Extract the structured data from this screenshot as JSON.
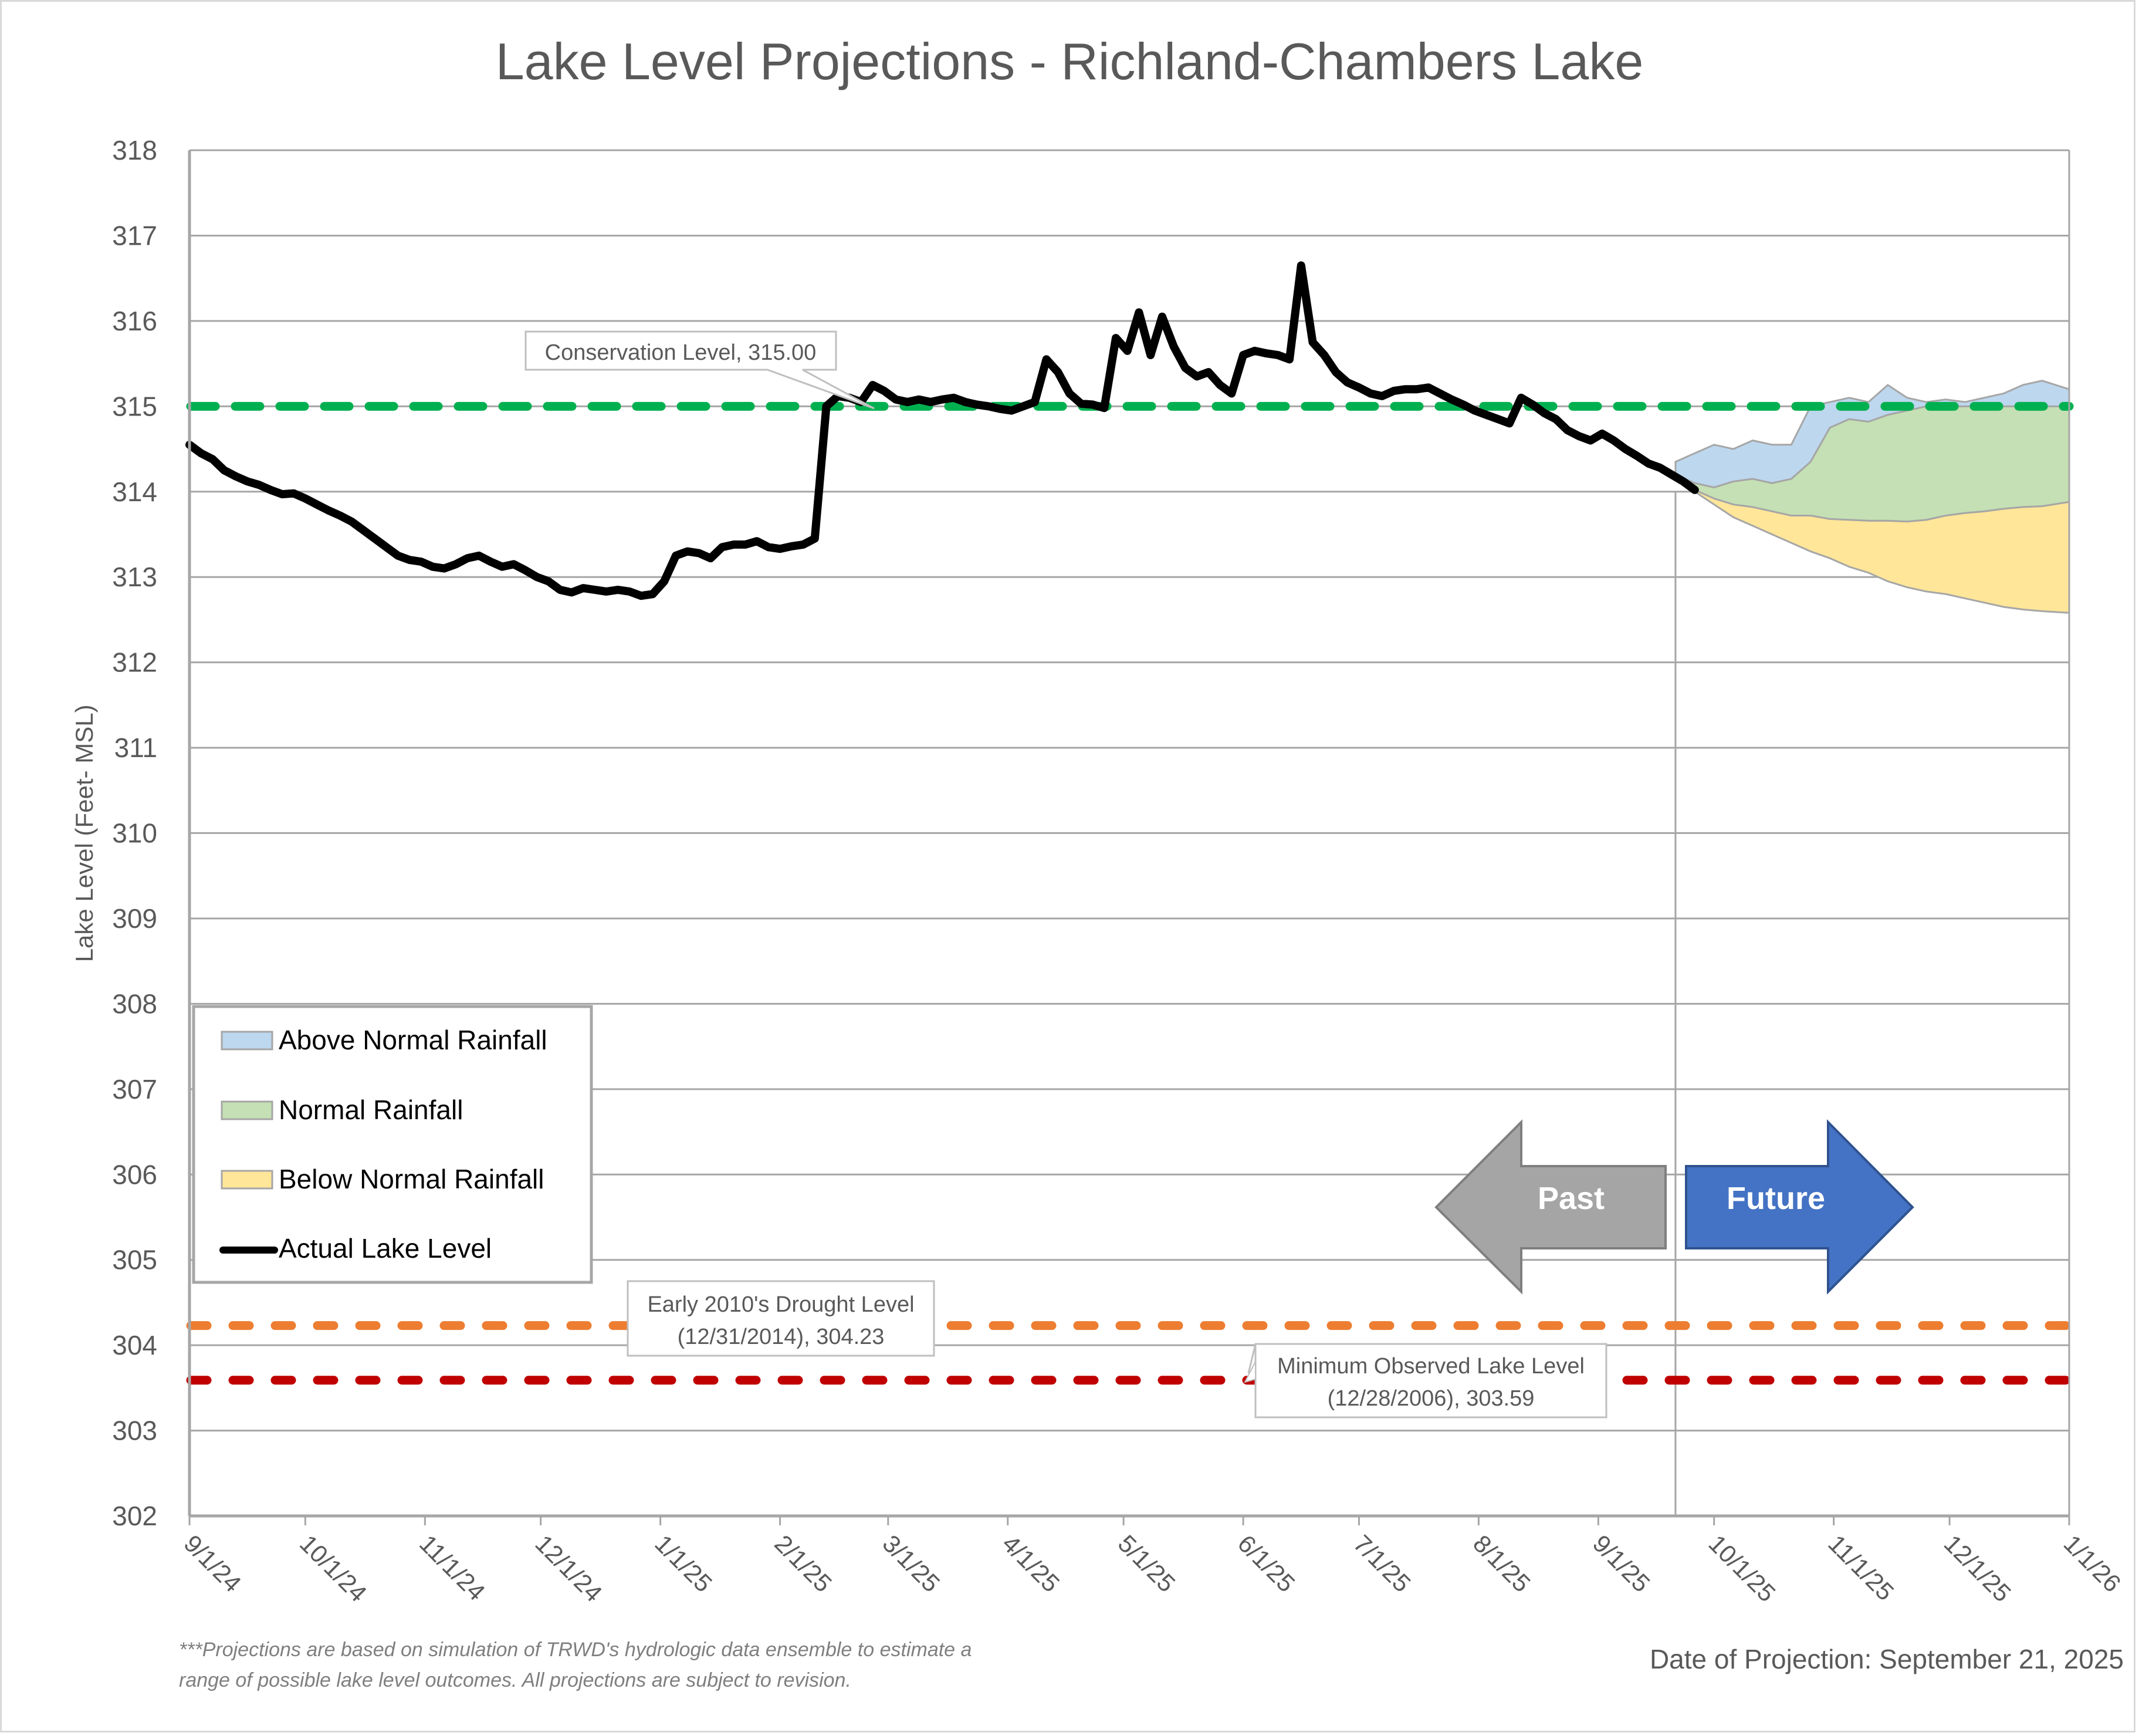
{
  "chart_data": {
    "type": "area",
    "title": "Lake Level Projections - Richland-Chambers Lake",
    "xlabel": "",
    "ylabel": "Lake Level (Feet- MSL)",
    "ylim": [
      302,
      318
    ],
    "yticks": [
      "302",
      "303",
      "304",
      "305",
      "306",
      "307",
      "308",
      "309",
      "310",
      "311",
      "312",
      "313",
      "314",
      "315",
      "316",
      "317",
      "318"
    ],
    "xlim": [
      "2024-09-01",
      "2026-01-01"
    ],
    "xticks": [
      "9/1/24",
      "10/1/24",
      "11/1/24",
      "12/1/24",
      "1/1/25",
      "2/1/25",
      "3/1/25",
      "4/1/25",
      "5/1/25",
      "6/1/25",
      "7/1/25",
      "8/1/25",
      "9/1/25",
      "10/1/25",
      "11/1/25",
      "12/1/25",
      "1/1/26"
    ],
    "xtick_dates": [
      "2024-09-01",
      "2024-10-01",
      "2024-11-01",
      "2024-12-01",
      "2025-01-01",
      "2025-02-01",
      "2025-03-01",
      "2025-04-01",
      "2025-05-01",
      "2025-06-01",
      "2025-07-01",
      "2025-08-01",
      "2025-09-01",
      "2025-10-01",
      "2025-11-01",
      "2025-12-01",
      "2026-01-01"
    ],
    "grid": true,
    "legend_position": "lower-left",
    "projection_start": "2025-09-21",
    "reference_lines": [
      {
        "name": "Conservation Level",
        "value": 315.0,
        "label": "Conservation Level, 315.00",
        "color": "#00b050"
      },
      {
        "name": "Early 2010's Drought Level",
        "value": 304.23,
        "label_line1": "Early 2010's Drought Level",
        "label_line2": "(12/31/2014), 304.23",
        "color": "#ed7d31"
      },
      {
        "name": "Minimum Observed Lake Level",
        "value": 303.59,
        "label_line1": "Minimum Observed Lake Level",
        "label_line2": "(12/28/2006), 303.59",
        "color": "#c00000"
      }
    ],
    "series": [
      {
        "name": "Actual Lake Level",
        "type": "line",
        "color": "#000000",
        "x_days": [
          0,
          3,
          6,
          9,
          12,
          15,
          18,
          21,
          24,
          27,
          30,
          33,
          36,
          39,
          42,
          45,
          48,
          51,
          54,
          57,
          60,
          63,
          66,
          69,
          72,
          75,
          78,
          81,
          84,
          87,
          90,
          93,
          96,
          99,
          102,
          105,
          108,
          111,
          114,
          117,
          120,
          123,
          126,
          129,
          132,
          135,
          138,
          141,
          144,
          147,
          150,
          153,
          156,
          159,
          162,
          165,
          168,
          171,
          174,
          177,
          180,
          183,
          186,
          189,
          192,
          195,
          198,
          201,
          204,
          207,
          210,
          213,
          216,
          219,
          222,
          225,
          228,
          231,
          234,
          237,
          240,
          243,
          246,
          249,
          252,
          255,
          258,
          261,
          264,
          267,
          270,
          273,
          276,
          279,
          282,
          285,
          288,
          291,
          294,
          297,
          300,
          303,
          306,
          309,
          312,
          315,
          318,
          321,
          324,
          327,
          330,
          333,
          336,
          339,
          342,
          345,
          348,
          351,
          354,
          357,
          360,
          363,
          366,
          369,
          372,
          375,
          378,
          381,
          384,
          387,
          390
        ],
        "values": [
          314.55,
          314.45,
          314.38,
          314.25,
          314.18,
          314.12,
          314.08,
          314.02,
          313.97,
          313.98,
          313.92,
          313.85,
          313.78,
          313.72,
          313.65,
          313.55,
          313.45,
          313.35,
          313.25,
          313.2,
          313.18,
          313.12,
          313.1,
          313.15,
          313.22,
          313.25,
          313.18,
          313.12,
          313.15,
          313.08,
          313.0,
          312.95,
          312.85,
          312.82,
          312.87,
          312.85,
          312.83,
          312.85,
          312.83,
          312.78,
          312.8,
          312.95,
          313.25,
          313.3,
          313.28,
          313.22,
          313.35,
          313.38,
          313.38,
          313.42,
          313.35,
          313.33,
          313.36,
          313.38,
          313.45,
          315.0,
          315.12,
          315.1,
          315.05,
          315.25,
          315.18,
          315.08,
          315.05,
          315.08,
          315.05,
          315.08,
          315.1,
          315.05,
          315.02,
          315.0,
          314.97,
          314.95,
          315.0,
          315.05,
          315.55,
          315.4,
          315.15,
          315.03,
          315.02,
          314.98,
          315.8,
          315.65,
          316.1,
          315.6,
          316.05,
          315.7,
          315.45,
          315.35,
          315.4,
          315.25,
          315.15,
          315.6,
          315.65,
          315.62,
          315.6,
          315.55,
          316.65,
          315.75,
          315.6,
          315.4,
          315.28,
          315.22,
          315.15,
          315.12,
          315.18,
          315.2,
          315.2,
          315.22,
          315.15,
          315.08,
          315.02,
          314.95,
          314.9,
          314.85,
          314.8,
          315.1,
          315.02,
          314.92,
          314.85,
          314.72,
          314.65,
          314.6,
          314.68,
          314.6,
          314.5,
          314.42,
          314.33,
          314.28,
          314.2,
          314.12,
          314.02
        ]
      }
    ],
    "projection_bands": {
      "x_days": [
        385,
        390,
        395,
        400,
        405,
        410,
        415,
        420,
        425,
        430,
        435,
        440,
        445,
        450,
        455,
        460,
        465,
        470,
        475,
        480,
        487
      ],
      "above_upper": [
        314.35,
        314.45,
        314.55,
        314.5,
        314.6,
        314.55,
        314.55,
        315.0,
        315.05,
        315.1,
        315.05,
        315.25,
        315.1,
        315.05,
        315.08,
        315.05,
        315.1,
        315.15,
        315.25,
        315.3,
        315.2
      ],
      "above_lower": [
        314.2,
        314.1,
        314.05,
        314.12,
        314.15,
        314.1,
        314.15,
        314.35,
        314.75,
        314.85,
        314.82,
        314.9,
        314.95,
        315.0,
        315.0,
        315.0,
        315.0,
        315.0,
        315.0,
        315.0,
        315.0
      ],
      "normal_lower": [
        314.15,
        314.02,
        313.92,
        313.85,
        313.82,
        313.77,
        313.72,
        313.72,
        313.68,
        313.67,
        313.66,
        313.66,
        313.65,
        313.67,
        313.72,
        313.75,
        313.77,
        313.8,
        313.82,
        313.83,
        313.88
      ],
      "below_lower": [
        314.15,
        314.0,
        313.85,
        313.7,
        313.6,
        313.5,
        313.4,
        313.3,
        313.22,
        313.12,
        313.05,
        312.95,
        312.88,
        312.83,
        312.8,
        312.75,
        312.7,
        312.65,
        312.62,
        312.6,
        312.58
      ],
      "series": [
        {
          "name": "Above Normal Rainfall",
          "color": "#bdd7ee"
        },
        {
          "name": "Normal Rainfall",
          "color": "#c5e0b4"
        },
        {
          "name": "Below Normal Rainfall",
          "color": "#ffe699"
        }
      ]
    },
    "annotations": [
      {
        "text": "Past",
        "direction": "left",
        "color": "#a5a5a5"
      },
      {
        "text": "Future",
        "direction": "right",
        "color": "#4472c4"
      }
    ],
    "footnote_line1": "***Projections are based on simulation of TRWD's hydrologic data ensemble to estimate a",
    "footnote_line2": "range of possible lake level outcomes.  All projections are subject to revision.",
    "projection_date_label": "Date of Projection: September 21, 2025"
  },
  "legend": {
    "items": [
      {
        "label": "Above Normal Rainfall",
        "swatch": "#bdd7ee"
      },
      {
        "label": "Normal Rainfall",
        "swatch": "#c5e0b4"
      },
      {
        "label": "Below Normal Rainfall",
        "swatch": "#ffe699"
      },
      {
        "label": "Actual Lake Level",
        "swatch": "#000000"
      }
    ]
  }
}
